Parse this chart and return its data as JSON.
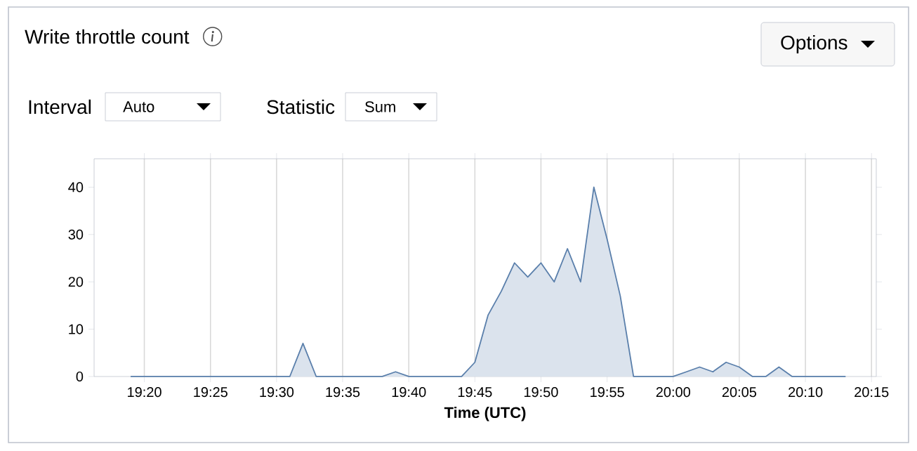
{
  "chart_data": {
    "type": "area",
    "title": "Write throttle count",
    "xlabel": "Time (UTC)",
    "annotations": [
      "Options",
      "Interval",
      "Auto",
      "Statistic",
      "Sum"
    ],
    "x": [
      19.3167,
      19.5167,
      19.5333,
      19.55,
      19.6333,
      19.65,
      19.6667,
      19.7333,
      19.75,
      19.7667,
      19.7833,
      19.8,
      19.8167,
      19.8333,
      19.85,
      19.8667,
      19.8833,
      19.9,
      19.9167,
      19.9333,
      19.95,
      20.0,
      20.0167,
      20.0333,
      20.05,
      20.0667,
      20.0833,
      20.1,
      20.1167,
      20.1333,
      20.15,
      20.2167
    ],
    "series": [
      {
        "color": "#5a7fab",
        "values": [
          0,
          0,
          7,
          0,
          0,
          1,
          0,
          0,
          3,
          13,
          18,
          24,
          21,
          24,
          20,
          27,
          20,
          40,
          29,
          17,
          0,
          0,
          1,
          2,
          1,
          3,
          2,
          0,
          0,
          2,
          0,
          0
        ]
      }
    ],
    "xlim": [
      19.27,
      20.256
    ],
    "ylim": [
      0,
      46
    ],
    "xticks": [
      {
        "value": 19.3333,
        "label": "19:20"
      },
      {
        "value": 19.4167,
        "label": "19:25"
      },
      {
        "value": 19.5,
        "label": "19:30"
      },
      {
        "value": 19.5833,
        "label": "19:35"
      },
      {
        "value": 19.6667,
        "label": "19:40"
      },
      {
        "value": 19.75,
        "label": "19:45"
      },
      {
        "value": 19.8333,
        "label": "19:50"
      },
      {
        "value": 19.9167,
        "label": "19:55"
      },
      {
        "value": 20.0,
        "label": "20:00"
      },
      {
        "value": 20.0833,
        "label": "20:05"
      },
      {
        "value": 20.1667,
        "label": "20:10"
      },
      {
        "value": 20.25,
        "label": "20:15"
      }
    ],
    "yticks": [
      0,
      10,
      20,
      30,
      40
    ],
    "grid": "x"
  }
}
